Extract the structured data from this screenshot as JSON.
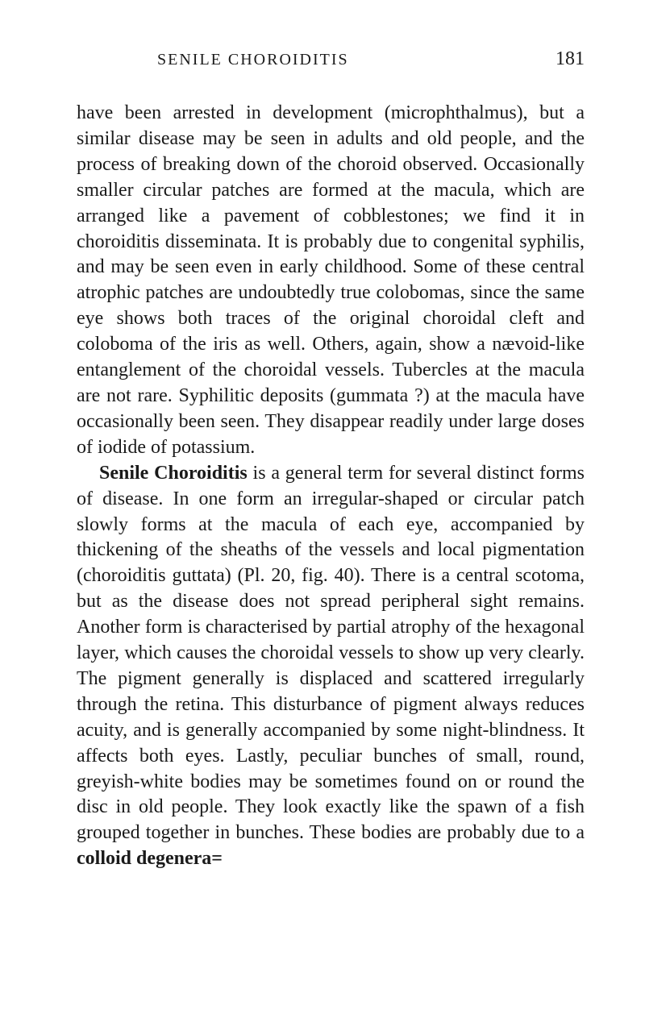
{
  "header": {
    "running_title": "SENILE CHOROIDITIS",
    "page_number": "181"
  },
  "paragraphs": {
    "p1_part1": "have been arrested in development (microphthalmus), but a similar disease may be seen in adults and old people, and the process of breaking down of the choroid observed. Occasionally smaller circular patches are formed at the macula, which are arranged like a pavement of cobblestones; we find it in choroiditis disseminata. It is probably due to con­genital syphilis, and may be seen even in early child­hood. Some of these central atrophic patches are undoubtedly true colobomas, since the same eye shows both traces of the original choroidal cleft and coloboma of the iris as well. Others, again, show a nævoid-like entanglement of the choroidal vessels. Tubercles at the macula are not rare. Syphilitic deposits (gummata ?) at the macula have occasionally been seen. They disappear readily under large doses of iodide of potassium.",
    "p2_bold": "Senile Choroiditis",
    "p2_rest": " is a general term for several distinct forms of disease. In one form an irregular-shaped or circular patch slowly forms at the macula of each eye, accompanied by thickening of the sheaths of the vessels and local pigmentation (choroiditis guttata) (Pl. 20, fig. 40). There is a central scotoma, but as the disease does not spread peripheral sight remains. Another form is characterised by partial atrophy of the hexagonal layer, which causes the choroidal vessels to show up very clearly. The pigment generally is displaced and scattered irregularly through the retina. This disturbance of pigment always reduces acuity, and is gene­rally accompanied by some night-blindness. It affects both eyes. Lastly, peculiar bunches of small, round, greyish-white bodies may be sometimes found on or round the disc in old people. They look exactly like the spawn of a fish grouped together in bunches. These bodies are probably due to a ",
    "p2_bold_end": "colloid degenera="
  },
  "styling": {
    "background_color": "#ffffff",
    "text_color": "#1a1a1a",
    "body_fontsize": 24,
    "header_fontsize": 20,
    "page_number_fontsize": 24,
    "line_height": 1.33,
    "font_family": "Georgia, Times New Roman, serif"
  }
}
